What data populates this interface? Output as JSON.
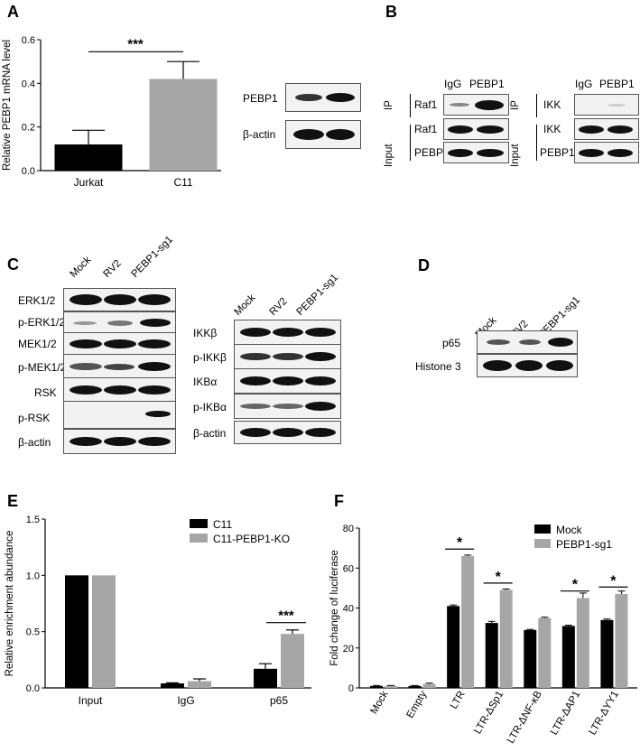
{
  "panelA": {
    "letter": "A",
    "chart_data": {
      "type": "bar",
      "categories": [
        "Jurkat",
        "C11"
      ],
      "values": [
        0.12,
        0.42
      ],
      "errors": [
        0.065,
        0.08
      ],
      "ylabel": "Relative PEBP1 mRNA level",
      "ylim": [
        0,
        0.6
      ],
      "yticks": [
        "0.0",
        "0.2",
        "0.4",
        "0.6"
      ],
      "significance": "***",
      "colors": [
        "#000000",
        "#a6a6a6"
      ]
    },
    "blot_labels": [
      "PEBP1",
      "β-actin"
    ]
  },
  "panelB": {
    "letter": "B",
    "left": {
      "lanes": [
        "IgG",
        "PEBP1"
      ],
      "ip_label": "IP",
      "input_label": "Input",
      "rows": [
        "Raf1",
        "Raf1",
        "PEBP1"
      ]
    },
    "right": {
      "lanes": [
        "IgG",
        "PEBP1"
      ],
      "ip_label": "IP",
      "input_label": "Input",
      "rows": [
        "IKK",
        "IKK",
        "PEBP1"
      ]
    }
  },
  "panelC": {
    "letter": "C",
    "lanes": [
      "Mock",
      "RV2",
      "PEBP1-sg1"
    ],
    "left_rows": [
      "ERK1/2",
      "p-ERK1/2",
      "MEK1/2",
      "p-MEK1/2",
      "RSK",
      "p-RSK",
      "β-actin"
    ],
    "right_rows": [
      "IKKβ",
      "p-IKKβ",
      "IKBα",
      "p-IKBα",
      "β-actin"
    ]
  },
  "panelD": {
    "letter": "D",
    "lanes": [
      "Mock",
      "RV2",
      "PEBP1-sg1"
    ],
    "rows": [
      "p65",
      "Histone 3"
    ]
  },
  "panelE": {
    "letter": "E",
    "chart_data": {
      "type": "bar",
      "categories": [
        "Input",
        "IgG",
        "p65"
      ],
      "series": [
        {
          "name": "C11",
          "values": [
            1.0,
            0.04,
            0.17
          ],
          "errors": [
            0,
            0.005,
            0.045
          ],
          "color": "#000000"
        },
        {
          "name": "C11-PEBP1-KO",
          "values": [
            1.0,
            0.06,
            0.48
          ],
          "errors": [
            0,
            0.02,
            0.035
          ],
          "color": "#a6a6a6"
        }
      ],
      "ylabel": "Relative enrichment abundance",
      "ylim": [
        0,
        1.5
      ],
      "yticks": [
        "0.0",
        "0.5",
        "1.0",
        "1.5"
      ],
      "significance": [
        {
          "category": "p65",
          "text": "***"
        }
      ],
      "legend": "top-right"
    }
  },
  "panelF": {
    "letter": "F",
    "chart_data": {
      "type": "bar",
      "categories": [
        "Mock",
        "Empty",
        "LTR",
        "LTR-ΔSp1",
        "LTR-ΔNF-κB",
        "LTR-ΔAP1",
        "LTR-ΔYY1"
      ],
      "series": [
        {
          "name": "Mock",
          "values": [
            1,
            1,
            41,
            32.5,
            29,
            31,
            34
          ],
          "errors": [
            0.2,
            0.2,
            0.5,
            0.8,
            0.3,
            0.4,
            0.5
          ],
          "color": "#000000"
        },
        {
          "name": "PEBP1-sg1",
          "values": [
            1,
            2,
            66,
            49,
            35,
            45,
            47
          ],
          "errors": [
            0.2,
            0.4,
            0.5,
            0.5,
            0.4,
            2.5,
            1.5
          ],
          "color": "#a6a6a6"
        }
      ],
      "ylabel": "Fold change of luciferase",
      "ylim": [
        0,
        80
      ],
      "yticks": [
        "0",
        "20",
        "40",
        "60",
        "80"
      ],
      "significance": [
        {
          "category": "LTR",
          "text": "*"
        },
        {
          "category": "LTR-ΔSp1",
          "text": "*"
        },
        {
          "category": "LTR-ΔAP1",
          "text": "*"
        },
        {
          "category": "LTR-ΔYY1",
          "text": "*"
        }
      ],
      "legend": "top-right"
    }
  }
}
